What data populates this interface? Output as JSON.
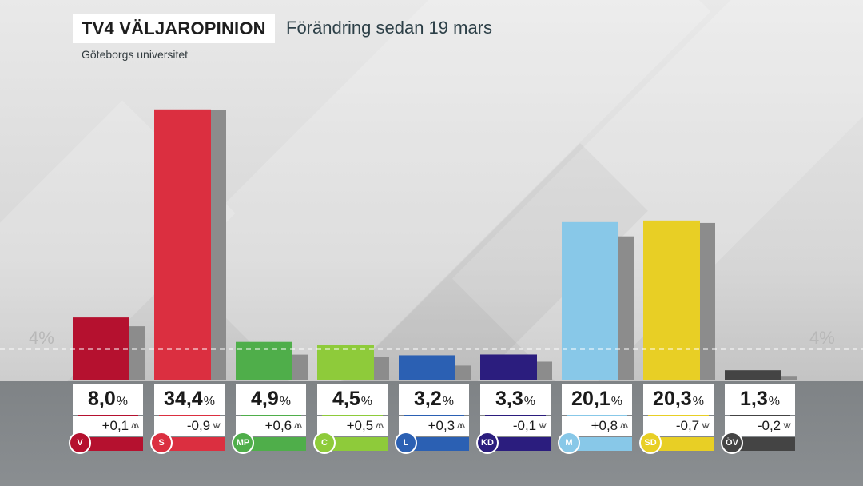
{
  "header": {
    "title": "TV4 VÄLJAROPINION",
    "subtitle": "Förändring sedan 19 mars",
    "source": "Göteborgs universitet"
  },
  "threshold": {
    "value": 4,
    "label": "4%"
  },
  "chart_data": {
    "type": "bar",
    "title": "TV4 VÄLJAROPINION",
    "subtitle": "Förändring sedan 19 mars",
    "ylim": [
      0,
      36
    ],
    "categories": [
      "V",
      "S",
      "MP",
      "C",
      "L",
      "KD",
      "M",
      "SD",
      "ÖV"
    ],
    "series": [
      {
        "values": [
          8.0,
          34.4,
          4.9,
          4.5,
          3.2,
          3.3,
          20.1,
          20.3,
          1.3
        ]
      },
      {
        "values": [
          7.9,
          35.3,
          4.3,
          4.0,
          2.9,
          3.4,
          19.3,
          21.0,
          1.5
        ]
      }
    ],
    "value_labels": [
      "8,0",
      "34,4",
      "4,9",
      "4,5",
      "3,2",
      "3,3",
      "20,1",
      "20,3",
      "1,3"
    ],
    "unit_label": "%",
    "change_labels": [
      "+0,1",
      "-0,9",
      "+0,6",
      "+0,5",
      "+0,3",
      "-0,1",
      "+0,8",
      "-0,7",
      "-0,2"
    ],
    "change_direction": [
      "up",
      "down",
      "up",
      "up",
      "up",
      "down",
      "up",
      "down",
      "down"
    ],
    "colors": [
      "#b5112f",
      "#db2f40",
      "#4fae4a",
      "#8ecb3a",
      "#2b60b3",
      "#2b1d7e",
      "#88c8e8",
      "#e8cf25",
      "#444444"
    ],
    "previous_color": "#8c8c8c"
  }
}
